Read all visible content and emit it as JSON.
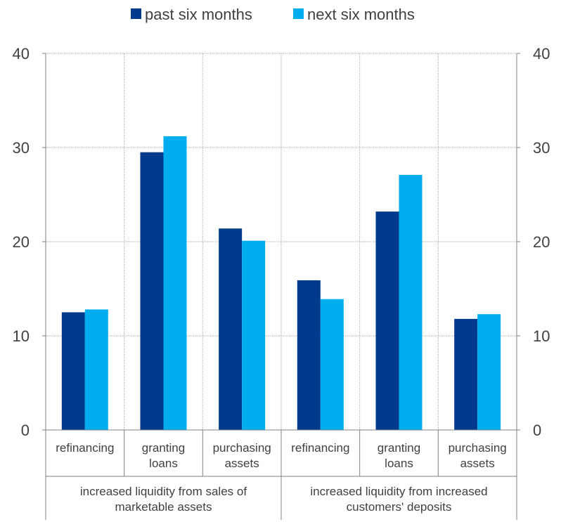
{
  "chart_data": {
    "type": "bar",
    "ylim": [
      0,
      40
    ],
    "yticks": [
      0,
      10,
      20,
      30,
      40
    ],
    "grid": true,
    "legend_position": "top-center",
    "categories": [
      "refinancing",
      "granting loans",
      "purchasing assets",
      "refinancing",
      "granting loans",
      "purchasing assets"
    ],
    "category_lines": [
      [
        "refinancing"
      ],
      [
        "granting",
        "loans"
      ],
      [
        "purchasing",
        "assets"
      ],
      [
        "refinancing"
      ],
      [
        "granting",
        "loans"
      ],
      [
        "purchasing",
        "assets"
      ]
    ],
    "groups": [
      {
        "lines": [
          "increased liquidity from sales of",
          "marketable assets"
        ],
        "categories": 3
      },
      {
        "lines": [
          "increased liquidity from increased",
          "customers' deposits"
        ],
        "categories": 3
      }
    ],
    "series": [
      {
        "name": "past six months",
        "color": "#003A8C",
        "values": [
          12.5,
          29.5,
          21.4,
          15.9,
          23.2,
          11.8
        ]
      },
      {
        "name": "next six months",
        "color": "#00AEEF",
        "values": [
          12.8,
          31.2,
          20.1,
          13.9,
          27.1,
          12.3
        ]
      }
    ]
  }
}
